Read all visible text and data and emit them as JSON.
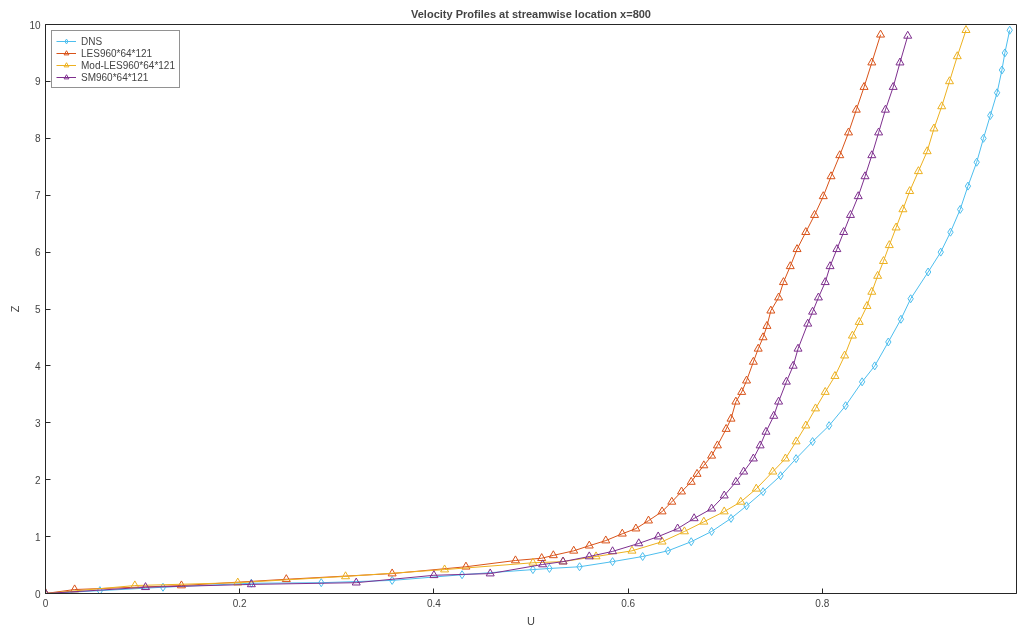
{
  "chart_data": {
    "type": "line",
    "title": "Velocity Profiles at streamwise location x=800",
    "xlabel": "U",
    "ylabel": "Z",
    "xlim": [
      0,
      1
    ],
    "xticks": [
      0,
      0.2,
      0.4,
      0.6,
      0.8
    ],
    "ylim": [
      0,
      10
    ],
    "yticks": [
      0,
      1,
      2,
      3,
      4,
      5,
      6,
      7,
      8,
      9,
      10
    ],
    "grid": false,
    "legend": "top left",
    "line_style": "solid",
    "series": [
      {
        "name": "DNS",
        "color": "#4dbeee",
        "marker": "diamond",
        "x": [
          0,
          0.056,
          0.121,
          0.212,
          0.284,
          0.357,
          0.429,
          0.502,
          0.519,
          0.55,
          0.584,
          0.615,
          0.641,
          0.665,
          0.686,
          0.706,
          0.722,
          0.739,
          0.757,
          0.773,
          0.79,
          0.807,
          0.824,
          0.841,
          0.854,
          0.868,
          0.881,
          0.891,
          0.909,
          0.922,
          0.932,
          0.942,
          0.95,
          0.959,
          0.966,
          0.973,
          0.98,
          0.985,
          0.988,
          0.993
        ],
        "values": [
          0,
          0.05,
          0.11,
          0.18,
          0.19,
          0.23,
          0.33,
          0.42,
          0.44,
          0.47,
          0.56,
          0.65,
          0.75,
          0.91,
          1.09,
          1.32,
          1.54,
          1.79,
          2.07,
          2.37,
          2.67,
          2.95,
          3.3,
          3.72,
          4.0,
          4.42,
          4.82,
          5.18,
          5.65,
          6.0,
          6.35,
          6.75,
          7.16,
          7.58,
          8.0,
          8.4,
          8.8,
          9.2,
          9.5,
          9.9
        ]
      },
      {
        "name": "LES960*64*121",
        "color": "#d95319",
        "marker": "triangle",
        "x": [
          0,
          0.03,
          0.14,
          0.248,
          0.357,
          0.433,
          0.484,
          0.511,
          0.523,
          0.544,
          0.56,
          0.577,
          0.594,
          0.608,
          0.621,
          0.635,
          0.645,
          0.655,
          0.665,
          0.671,
          0.678,
          0.686,
          0.692,
          0.701,
          0.706,
          0.711,
          0.717,
          0.722,
          0.729,
          0.734,
          0.739,
          0.743,
          0.747,
          0.755,
          0.76,
          0.767,
          0.774,
          0.783,
          0.792,
          0.801,
          0.809,
          0.818,
          0.827,
          0.835,
          0.843,
          0.851,
          0.86
        ],
        "values": [
          0,
          0.07,
          0.14,
          0.25,
          0.35,
          0.47,
          0.58,
          0.62,
          0.67,
          0.75,
          0.84,
          0.93,
          1.05,
          1.14,
          1.28,
          1.44,
          1.61,
          1.79,
          1.96,
          2.1,
          2.25,
          2.42,
          2.6,
          2.89,
          3.07,
          3.37,
          3.54,
          3.74,
          4.07,
          4.3,
          4.5,
          4.7,
          4.97,
          5.2,
          5.47,
          5.75,
          6.05,
          6.35,
          6.65,
          6.98,
          7.33,
          7.7,
          8.1,
          8.5,
          8.9,
          9.33,
          9.82
        ]
      },
      {
        "name": "Mod-LES960*64*121",
        "color": "#edb120",
        "marker": "triangle",
        "x": [
          0,
          0.092,
          0.198,
          0.309,
          0.411,
          0.502,
          0.533,
          0.567,
          0.604,
          0.635,
          0.658,
          0.678,
          0.699,
          0.716,
          0.732,
          0.749,
          0.762,
          0.773,
          0.783,
          0.793,
          0.803,
          0.813,
          0.823,
          0.831,
          0.838,
          0.846,
          0.851,
          0.857,
          0.863,
          0.869,
          0.876,
          0.883,
          0.89,
          0.899,
          0.908,
          0.915,
          0.923,
          0.931,
          0.939,
          0.948
        ],
        "values": [
          0,
          0.14,
          0.19,
          0.3,
          0.42,
          0.54,
          0.56,
          0.65,
          0.75,
          0.91,
          1.09,
          1.26,
          1.44,
          1.61,
          1.84,
          2.14,
          2.37,
          2.67,
          2.95,
          3.25,
          3.54,
          3.82,
          4.18,
          4.53,
          4.77,
          5.05,
          5.3,
          5.58,
          5.84,
          6.12,
          6.43,
          6.75,
          7.07,
          7.42,
          7.77,
          8.17,
          8.56,
          9.0,
          9.44,
          9.9
        ]
      },
      {
        "name": "SM960*64*121",
        "color": "#7e2f8e",
        "marker": "triangle",
        "x": [
          0,
          0.103,
          0.212,
          0.32,
          0.4,
          0.458,
          0.512,
          0.533,
          0.56,
          0.584,
          0.611,
          0.631,
          0.651,
          0.668,
          0.686,
          0.699,
          0.711,
          0.719,
          0.729,
          0.736,
          0.742,
          0.75,
          0.755,
          0.763,
          0.77,
          0.775,
          0.785,
          0.79,
          0.796,
          0.803,
          0.808,
          0.815,
          0.822,
          0.829,
          0.837,
          0.844,
          0.851,
          0.858,
          0.865,
          0.873,
          0.88,
          0.888
        ],
        "values": [
          0,
          0.11,
          0.16,
          0.19,
          0.32,
          0.35,
          0.51,
          0.56,
          0.65,
          0.74,
          0.88,
          1.0,
          1.14,
          1.32,
          1.49,
          1.72,
          1.96,
          2.14,
          2.37,
          2.6,
          2.84,
          3.12,
          3.37,
          3.72,
          4.0,
          4.3,
          4.74,
          4.95,
          5.2,
          5.47,
          5.75,
          6.05,
          6.35,
          6.65,
          6.98,
          7.33,
          7.7,
          8.1,
          8.5,
          8.9,
          9.33,
          9.8
        ]
      }
    ]
  }
}
